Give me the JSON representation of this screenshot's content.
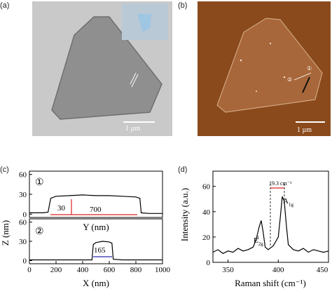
{
  "panels": {
    "a": {
      "label": "(a)",
      "scale_text": "1 µm"
    },
    "b": {
      "label": "(b)",
      "scale_text": "1 µm",
      "marker1": "①",
      "marker2": "②"
    },
    "c": {
      "label": "(c)",
      "ylabel": "Z (nm)",
      "top_xlabel": "Y (nm)",
      "bottom_xlabel": "X (nm)",
      "top_marker": "①",
      "bottom_marker": "②",
      "annot_height": "30",
      "annot_width_top": "700",
      "annot_width_bottom": "165",
      "y_ticks": [
        "0",
        "30",
        "60"
      ],
      "x_ticks": [
        "0",
        "200",
        "400",
        "600",
        "800",
        "1000"
      ]
    },
    "d": {
      "label": "(d)",
      "ylabel": "Intensity (a.u.)",
      "xlabel": "Raman shift (cm⁻¹)",
      "annot_shift": "19.3 cm⁻¹",
      "peak1_label": "E",
      "peak2_label": "A",
      "y_ticks": [
        "0",
        "20",
        "40",
        "60"
      ],
      "x_ticks": [
        "350",
        "400",
        "450"
      ]
    }
  },
  "chart_data": [
    {
      "type": "line",
      "panel": "c-1",
      "xlabel": "Y (nm)",
      "ylabel": "Z (nm)",
      "xlim": [
        0,
        1000
      ],
      "ylim": [
        -5,
        65
      ],
      "x": [
        0,
        100,
        140,
        160,
        200,
        300,
        400,
        500,
        600,
        700,
        800,
        830,
        840,
        900,
        1000
      ],
      "values": [
        2,
        2,
        3,
        24,
        27,
        28,
        29,
        28,
        28,
        27,
        26,
        24,
        2,
        1,
        1
      ]
    },
    {
      "type": "line",
      "panel": "c-2",
      "xlabel": "X (nm)",
      "ylabel": "Z (nm)",
      "xlim": [
        0,
        1000
      ],
      "ylim": [
        -5,
        65
      ],
      "x": [
        0,
        200,
        400,
        470,
        480,
        500,
        550,
        600,
        620,
        630,
        700,
        800,
        1000
      ],
      "values": [
        1,
        1,
        1,
        1,
        25,
        28,
        30,
        29,
        27,
        2,
        1,
        1,
        1
      ]
    },
    {
      "type": "line",
      "panel": "d",
      "xlabel": "Raman shift (cm⁻¹)",
      "ylabel": "Intensity (a.u.)",
      "xlim": [
        335,
        450
      ],
      "ylim": [
        0,
        72
      ],
      "x": [
        335,
        340,
        345,
        350,
        355,
        360,
        365,
        370,
        375,
        378,
        381,
        383,
        385,
        387,
        390,
        395,
        400,
        402,
        404,
        406,
        408,
        410,
        415,
        420,
        425,
        430,
        435,
        440,
        445,
        450
      ],
      "values": [
        8,
        10,
        7,
        9,
        8,
        11,
        9,
        10,
        12,
        18,
        28,
        33,
        24,
        12,
        10,
        13,
        20,
        35,
        52,
        48,
        30,
        14,
        10,
        9,
        11,
        8,
        10,
        9,
        8,
        9
      ]
    }
  ]
}
